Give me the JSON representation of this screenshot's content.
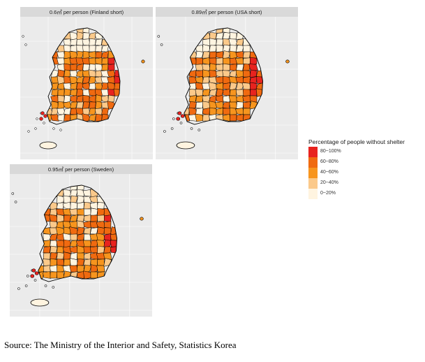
{
  "panels": [
    {
      "id": "finland",
      "title": "0.6㎡ per person (Finland short)"
    },
    {
      "id": "usa",
      "title": "0.89㎡ per person (USA short)"
    },
    {
      "id": "sweden",
      "title": "0.95㎡ per person (Sweden)"
    }
  ],
  "legend": {
    "title": "Percentage of people without shelter",
    "items": [
      {
        "label": "80~100%",
        "color": "#e8231f"
      },
      {
        "label": "60~80%",
        "color": "#f06a10"
      },
      {
        "label": "40~60%",
        "color": "#f7951e"
      },
      {
        "label": "20~40%",
        "color": "#fbc98a"
      },
      {
        "label": "0~20%",
        "color": "#fff4e0"
      }
    ]
  },
  "source": "Source: The Ministry of the Interior and Safety, Statistics Korea"
}
